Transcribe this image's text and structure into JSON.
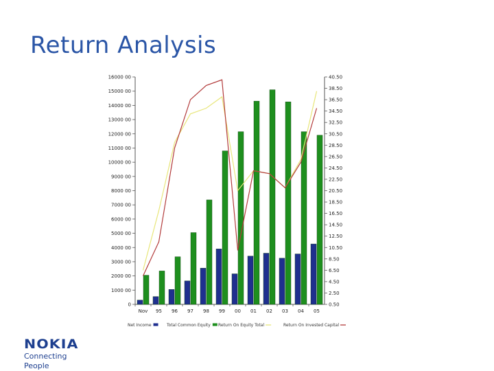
{
  "slide": {
    "title": "Return Analysis"
  },
  "logo": {
    "word": "NOKIA",
    "tagline": "Connecting People",
    "color": "#1d3f8f"
  },
  "chart_data": {
    "type": "bar",
    "categories": [
      "Nov",
      "95",
      "96",
      "97",
      "98",
      "99",
      "00",
      "01",
      "02",
      "03",
      "04",
      "05"
    ],
    "left_axis": {
      "min": 0,
      "max": 16000,
      "step": 1000,
      "tick_labels": [
        "0",
        "1000 00",
        "2000 00",
        "3000 00",
        "4000 00",
        "5000 00",
        "6000 00",
        "7000 00",
        "8000 00",
        "9000 00",
        "10000 00",
        "11000 00",
        "12000 00",
        "13000 00",
        "14000 00",
        "15000 00",
        "16000 00"
      ]
    },
    "right_axis": {
      "min": 0.5,
      "max": 40.5,
      "step": 2,
      "tick_labels": [
        "0.50",
        "2.50",
        "4.50",
        "6.50",
        "8.50",
        "10.50",
        "12.50",
        "14.50",
        "16.50",
        "18.50",
        "20.50",
        "22.50",
        "24.50",
        "26.50",
        "28.50",
        "30.50",
        "32.50",
        "34.50",
        "36.50",
        "38.50",
        "40.50"
      ]
    },
    "series": [
      {
        "name": "Net Income",
        "type": "bar",
        "axis": "left",
        "color": "#1f2f8f",
        "values": [
          300,
          550,
          1050,
          1650,
          2550,
          3900,
          2150,
          3400,
          3600,
          3250,
          3550,
          4250
        ]
      },
      {
        "name": "Total Common Equity",
        "type": "bar",
        "axis": "left",
        "color": "#1e8f1e",
        "values": [
          2050,
          2350,
          3350,
          5050,
          7350,
          10800,
          12150,
          14300,
          15100,
          14250,
          12150,
          11900
        ]
      },
      {
        "name": "Return On Equity Total",
        "type": "line",
        "axis": "right",
        "color": "#e8e67a",
        "values": [
          6.5,
          17,
          29,
          34,
          35,
          37,
          20.5,
          24,
          23.5,
          21,
          26,
          38
        ]
      },
      {
        "name": "Return On Invested Capital",
        "type": "line",
        "axis": "right",
        "color": "#b23a3a",
        "values": [
          5.5,
          11.5,
          28,
          36.5,
          39,
          40,
          10,
          24,
          23.5,
          21,
          25.5,
          35
        ]
      }
    ],
    "legend_position": "bottom",
    "grid": false
  }
}
